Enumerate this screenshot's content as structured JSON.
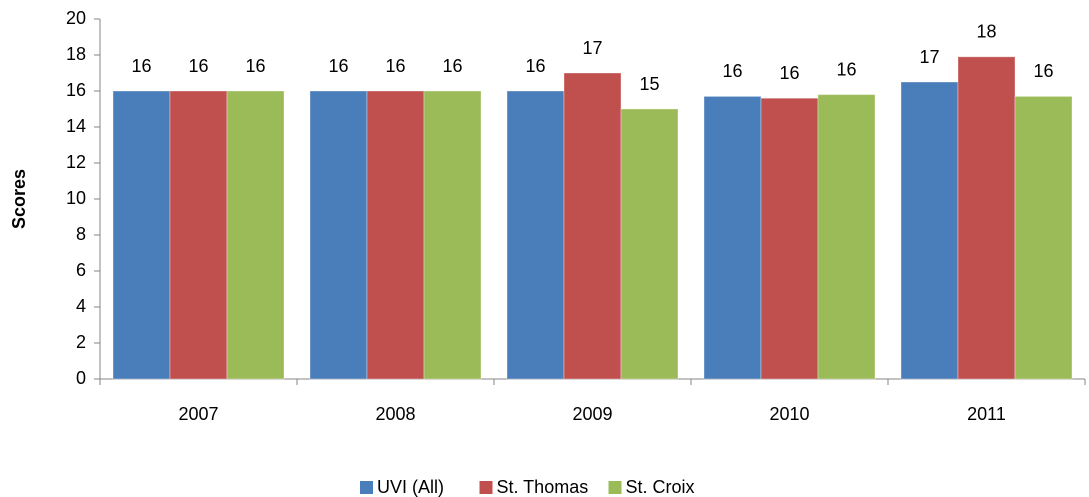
{
  "chart_data": {
    "type": "bar",
    "y_label": "Scores",
    "categories": [
      "2007",
      "2008",
      "2009",
      "2010",
      "2011"
    ],
    "series": [
      {
        "name": "UVI (All)",
        "color": "#4a7ebb",
        "values": [
          16,
          16,
          16,
          15.7,
          16.5
        ],
        "value_labels": [
          "16",
          "16",
          "16",
          "16",
          "17"
        ]
      },
      {
        "name": "St. Thomas",
        "color": "#c0504d",
        "values": [
          16,
          16,
          17,
          15.6,
          17.9
        ],
        "value_labels": [
          "16",
          "16",
          "17",
          "16",
          "18"
        ]
      },
      {
        "name": "St. Croix",
        "color": "#9bbb59",
        "values": [
          16,
          16,
          15,
          15.8,
          15.7
        ],
        "value_labels": [
          "16",
          "16",
          "15",
          "16",
          "16"
        ]
      }
    ],
    "ylim": [
      0,
      20
    ],
    "yticks": [
      0,
      2,
      4,
      6,
      8,
      10,
      12,
      14,
      16,
      18,
      20
    ],
    "grid": false,
    "legend": "bottom"
  }
}
